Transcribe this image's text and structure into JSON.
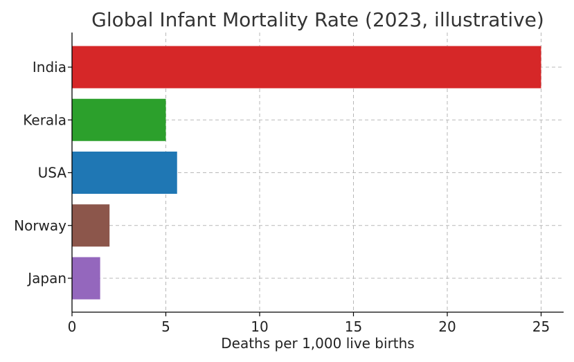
{
  "chart_data": {
    "type": "bar",
    "orientation": "horizontal",
    "title": "Global Infant Mortality Rate (2023, illustrative)",
    "xlabel": "Deaths per 1,000 live births",
    "ylabel": "",
    "categories": [
      "India",
      "Kerala",
      "USA",
      "Norway",
      "Japan"
    ],
    "values": [
      25,
      5,
      5.6,
      2,
      1.5
    ],
    "colors": [
      "#d62728",
      "#2ca02c",
      "#1f77b4",
      "#8c564b",
      "#9467bd"
    ],
    "xlim": [
      0,
      26.2
    ],
    "xticks": [
      0,
      5,
      10,
      15,
      20,
      25
    ],
    "grid": true,
    "legend": "none"
  }
}
